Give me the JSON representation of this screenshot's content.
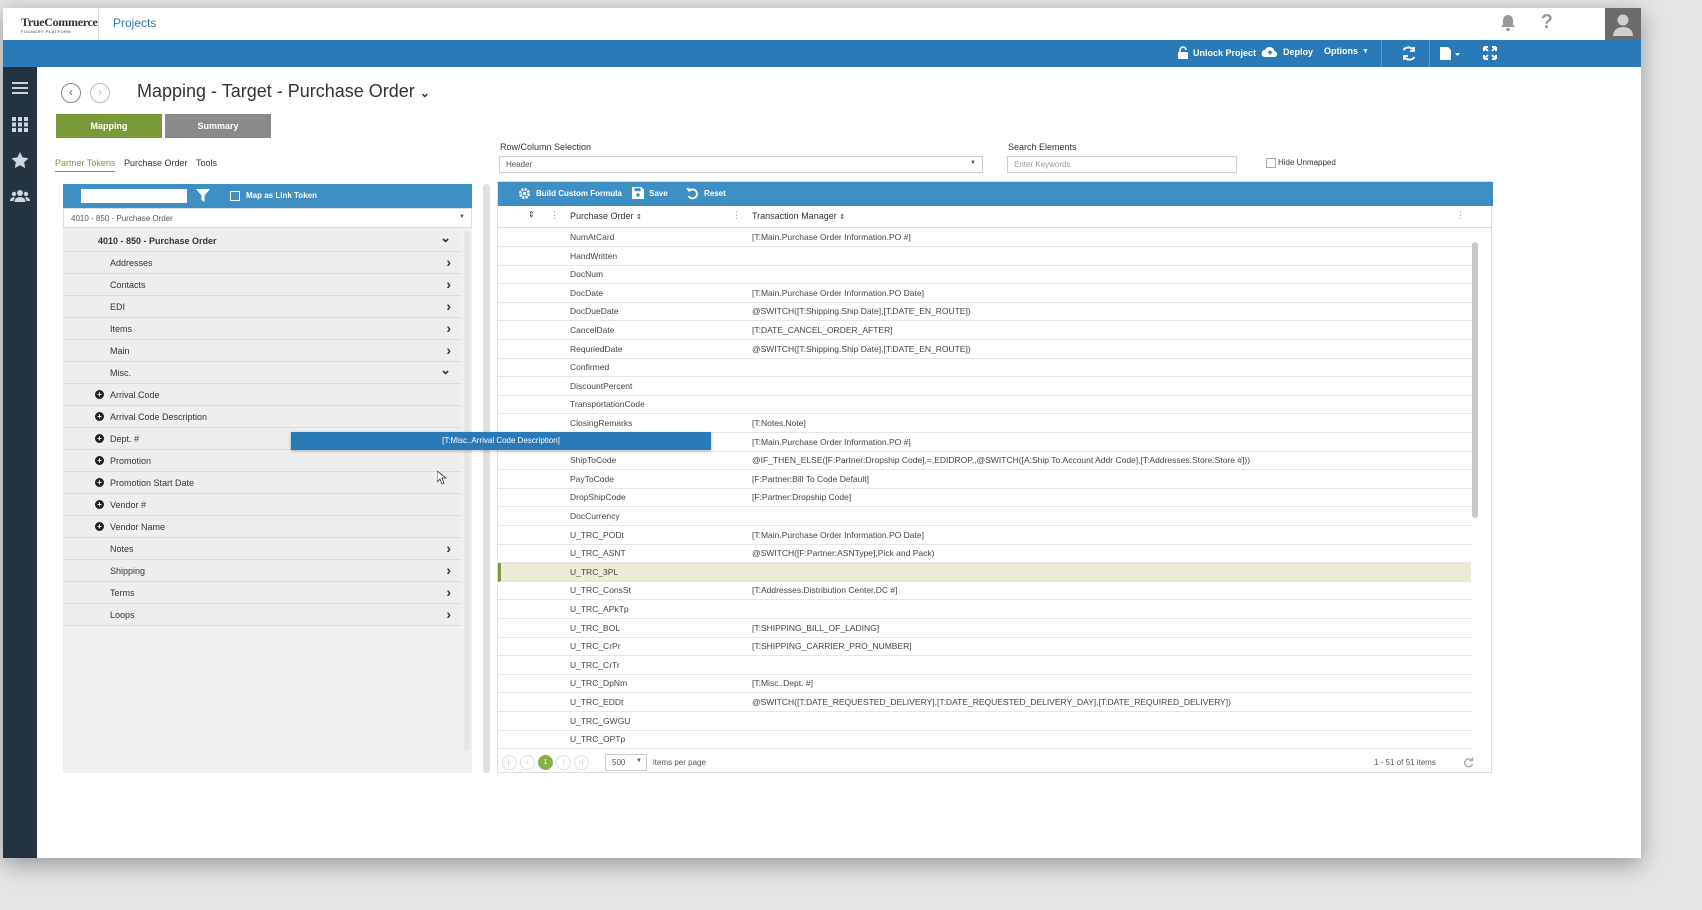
{
  "app": {
    "logo": "TrueCommerce",
    "logo_tagline": "FOUNDRY PLATFORM",
    "nav_projects": "Projects"
  },
  "toolbar": {
    "unlock": "Unlock Project",
    "deploy": "Deploy",
    "options": "Options"
  },
  "page": {
    "title": "Mapping - Target - Purchase Order",
    "tabs": {
      "mapping": "Mapping",
      "summary": "Summary"
    },
    "subtabs": {
      "partner_tokens": "Partner Tokens",
      "purchase_order": "Purchase Order",
      "tools": "Tools"
    },
    "row_col_label": "Row/Column Selection",
    "row_col_value": "Header",
    "search_label": "Search Elements",
    "search_placeholder": "Enter Keywords",
    "hide_unmapped": "Hide Unmapped"
  },
  "left": {
    "map_link_token": "Map as Link Token",
    "select_value": "4010 - 850 - Purchase Order",
    "tree_root": "4010 - 850 - Purchase Order",
    "groups_a": [
      "Addresses",
      "Contacts",
      "EDI",
      "Items",
      "Main"
    ],
    "misc": "Misc.",
    "misc_items": [
      "Arrival Code",
      "Arrival Code Description",
      "Dept. #",
      "Promotion",
      "Promotion Start Date",
      "Vendor #",
      "Vendor Name"
    ],
    "groups_b": [
      "Notes",
      "Shipping",
      "Terms",
      "Loops"
    ]
  },
  "right": {
    "build_formula": "Build Custom Formula",
    "save": "Save",
    "reset": "Reset",
    "col_po": "Purchase Order",
    "col_tm": "Transaction Manager",
    "rows": [
      {
        "po": "NumAtCard",
        "tm": "[T:Main.Purchase Order Information.PO #]"
      },
      {
        "po": "HandWritten",
        "tm": ""
      },
      {
        "po": "DocNum",
        "tm": ""
      },
      {
        "po": "DocDate",
        "tm": "[T:Main.Purchase Order Information.PO Date]"
      },
      {
        "po": "DocDueDate",
        "tm": "@SWITCH([T:Shipping.Ship Date],[T:DATE_EN_ROUTE])"
      },
      {
        "po": "CancelDate",
        "tm": "[T:DATE_CANCEL_ORDER_AFTER]"
      },
      {
        "po": "RequriedDate",
        "tm": "@SWITCH([T:Shipping.Ship Date],[T:DATE_EN_ROUTE])"
      },
      {
        "po": "Confirmed",
        "tm": ""
      },
      {
        "po": "DiscountPercent",
        "tm": ""
      },
      {
        "po": "TransportationCode",
        "tm": ""
      },
      {
        "po": "ClosingRemarks",
        "tm": "[T:Notes.Note]"
      },
      {
        "po": "",
        "tm": "[T:Main.Purchase Order Information.PO #]"
      },
      {
        "po": "ShipToCode",
        "tm": "@IF_THEN_ELSE([F:Partner:Dropship Code],=,EDIDROP,,@SWITCH([A:Ship To.Account Addr Code],[T:Addresses.Store.Store #]))"
      },
      {
        "po": "PayToCode",
        "tm": "[F:Partner:Bill To Code Default]"
      },
      {
        "po": "DropShipCode",
        "tm": "[F:Partner:Dropship Code]"
      },
      {
        "po": "DocCurrency",
        "tm": ""
      },
      {
        "po": "U_TRC_PODt",
        "tm": "[T:Main.Purchase Order Information.PO Date]"
      },
      {
        "po": "U_TRC_ASNT",
        "tm": "@SWITCH([F:Partner:ASNType],Pick and Pack)"
      },
      {
        "po": "U_TRC_3PL",
        "tm": ""
      },
      {
        "po": "U_TRC_ConsSt",
        "tm": "[T:Addresses.Distribution Center.DC #]"
      },
      {
        "po": "U_TRC_APkTp",
        "tm": ""
      },
      {
        "po": "U_TRC_BOL",
        "tm": "[T:SHIPPING_BILL_OF_LADING]"
      },
      {
        "po": "U_TRC_CrPr",
        "tm": "[T:SHIPPING_CARRIER_PRO_NUMBER]"
      },
      {
        "po": "U_TRC_CrTr",
        "tm": ""
      },
      {
        "po": "U_TRC_DpNm",
        "tm": "[T:Misc..Dept. #]"
      },
      {
        "po": "U_TRC_EDDt",
        "tm": "@SWITCH([T:DATE_REQUESTED_DELIVERY],[T:DATE_REQUESTED_DELIVERY_DAY],[T:DATE_REQUIRED_DELIVERY])"
      },
      {
        "po": "U_TRC_GWGU",
        "tm": ""
      },
      {
        "po": "U_TRC_OPTp",
        "tm": ""
      }
    ],
    "pager_page": "1",
    "per_page": "500",
    "items_per_page": "items per page",
    "item_count": "1 - 51 of 51 items"
  },
  "drag_token": "[T:Misc..Arrival Code Description]",
  "colors": {
    "blue": "#2a7ab7",
    "green": "#7a9a3a",
    "grey": "#8a8a8a",
    "nav": "#243342"
  }
}
